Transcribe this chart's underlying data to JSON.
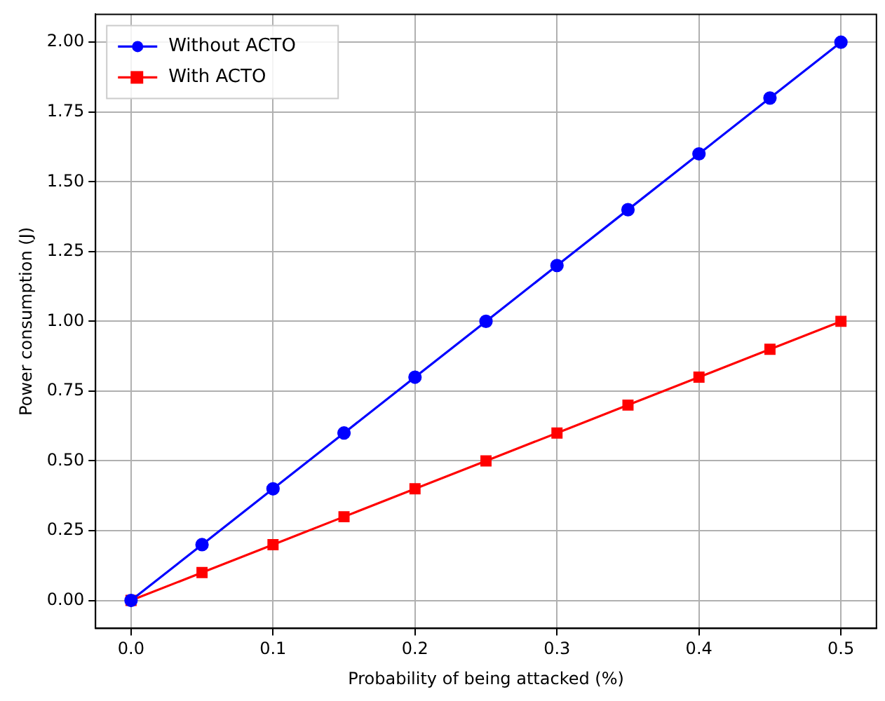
{
  "chart_data": {
    "type": "line",
    "xlabel": "Probability of being attacked (%)",
    "ylabel": "Power consumption (J)",
    "x": [
      0,
      0.05,
      0.1,
      0.15,
      0.2,
      0.25,
      0.3,
      0.35,
      0.4,
      0.45,
      0.5
    ],
    "series": [
      {
        "name": "Without ACTO",
        "color": "#0000ff",
        "marker": "circle",
        "values": [
          0,
          0.2,
          0.4,
          0.6,
          0.8,
          1.0,
          1.2,
          1.4,
          1.6,
          1.8,
          2.0
        ]
      },
      {
        "name": "With ACTO",
        "color": "#ff0000",
        "marker": "square",
        "values": [
          0,
          0.1,
          0.2,
          0.3,
          0.4,
          0.5,
          0.6,
          0.7,
          0.8,
          0.9,
          1.0
        ]
      }
    ],
    "xlim": [
      -0.025,
      0.525
    ],
    "ylim": [
      -0.1,
      2.1
    ],
    "xticks": [
      {
        "value": 0,
        "label": "0.0"
      },
      {
        "value": 0.1,
        "label": "0.1"
      },
      {
        "value": 0.2,
        "label": "0.2"
      },
      {
        "value": 0.3,
        "label": "0.3"
      },
      {
        "value": 0.4,
        "label": "0.4"
      },
      {
        "value": 0.5,
        "label": "0.5"
      }
    ],
    "yticks": [
      {
        "value": 0,
        "label": "0.00"
      },
      {
        "value": 0.25,
        "label": "0.25"
      },
      {
        "value": 0.5,
        "label": "0.50"
      },
      {
        "value": 0.75,
        "label": "0.75"
      },
      {
        "value": 1,
        "label": "1.00"
      },
      {
        "value": 1.25,
        "label": "1.25"
      },
      {
        "value": 1.5,
        "label": "1.50"
      },
      {
        "value": 1.75,
        "label": "1.75"
      },
      {
        "value": 2,
        "label": "2.00"
      }
    ],
    "grid": true,
    "legend": "top left",
    "line_style": "solid"
  }
}
